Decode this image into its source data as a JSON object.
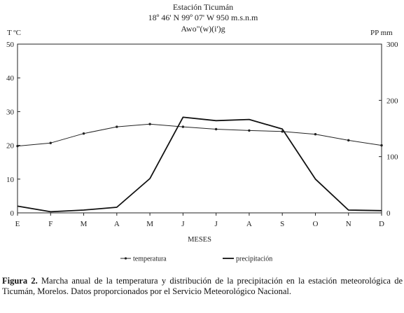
{
  "chart_data": {
    "type": "line",
    "title_lines": [
      "Estación Ticumán",
      "18º 46' N 99º 07' W 950 m.s.n.m",
      "Awo\"(w)(i')g"
    ],
    "xlabel": "MESES",
    "ylabel_left": "T ºC",
    "ylabel_right": "PP mm",
    "categories": [
      "E",
      "F",
      "M",
      "A",
      "M",
      "J",
      "J",
      "A",
      "S",
      "O",
      "N",
      "D"
    ],
    "y_left": {
      "lim": [
        0,
        50
      ],
      "ticks": [
        "0",
        "10",
        "20",
        "30",
        "40",
        "50"
      ]
    },
    "y_right": {
      "lim": [
        0,
        300
      ],
      "ticks": [
        "0",
        "100",
        "200",
        "300"
      ]
    },
    "grid": false,
    "legend_position": "bottom",
    "series": [
      {
        "name": "temperatura",
        "axis": "left",
        "marker": true,
        "values": [
          19.8,
          20.7,
          23.5,
          25.5,
          26.3,
          25.5,
          24.8,
          24.4,
          24.1,
          23.3,
          21.5,
          20.0
        ]
      },
      {
        "name": "precipitación",
        "axis": "right",
        "marker": false,
        "values": [
          12,
          2,
          5,
          10,
          61,
          170,
          164,
          166,
          149,
          60,
          5,
          4
        ]
      }
    ],
    "colors": {
      "temperatura": "#222222",
      "precipitación": "#111111"
    }
  },
  "caption": {
    "label": "Figura 2.",
    "text": " Marcha anual de la temperatura y distribución de la precipitación en la estación meteorológica de Ticumán, Morelos. Datos proporcionados por el Servicio Meteorológico Nacional."
  }
}
